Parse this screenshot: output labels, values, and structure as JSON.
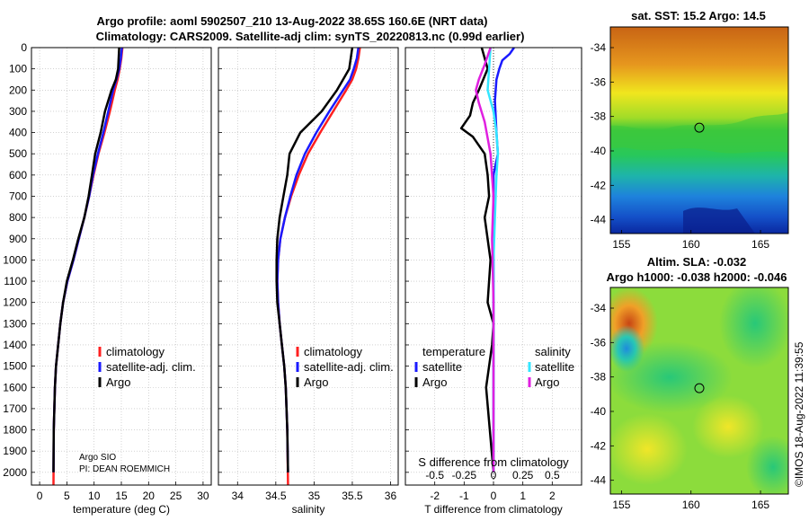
{
  "titles": {
    "line1": "Argo profile: aoml 5902507_210 13-Aug-2022 38.65S 160.6E (NRT data)",
    "line2": "Climatology: CARS2009. Satellite-adj clim: synTS_20220813.nc (0.99d earlier)",
    "sst_title": "sat. SST: 15.2 Argo: 14.5",
    "sla_title1": "Altim. SLA: -0.032",
    "sla_title2": "Argo h1000: -0.038 h2000: -0.046",
    "timestamp": "©IMOS 18-Aug-2022 11:39:55",
    "credit1": "Argo SIO",
    "credit2": "PI: DEAN ROEMMICH"
  },
  "legends": {
    "climatology": "climatology",
    "satellite_adj": "satellite-adj. clim.",
    "argo": "Argo",
    "temperature": "temperature",
    "salinity": "salinity",
    "satellite": "satellite",
    "s_diff_label": "S difference from climatology"
  },
  "colors": {
    "climatology": "#ff2020",
    "satellite_adj": "#1a1aff",
    "argo": "#000000",
    "temp_diff": "#1a1aff",
    "sal_sat": "#33e6ff",
    "sal_argo": "#e020e0",
    "grid": "#b8b8b8"
  },
  "chart_data": [
    {
      "id": "temperature",
      "type": "line",
      "xlabel": "temperature (deg C)",
      "xlim": [
        -1.5,
        31.5
      ],
      "xticks": [
        0,
        5,
        10,
        15,
        20,
        25,
        30
      ],
      "xtick_labels": [
        "0",
        "5",
        "10",
        "15",
        "20",
        "25",
        "30"
      ],
      "ylim": [
        0,
        2060
      ],
      "yticks": [
        0,
        100,
        200,
        300,
        400,
        500,
        600,
        700,
        800,
        900,
        1000,
        1100,
        1200,
        1300,
        1400,
        1500,
        1600,
        1700,
        1800,
        1900,
        2000
      ],
      "ytick_labels": [
        "0",
        "100",
        "200",
        "300",
        "400",
        "500",
        "600",
        "700",
        "800",
        "900",
        "1000",
        "1100",
        "1200",
        "1300",
        "1400",
        "1500",
        "1600",
        "1700",
        "1800",
        "1900",
        "2000"
      ],
      "series": [
        {
          "name": "climatology",
          "color": "#ff2020",
          "width": 2.5,
          "x": [
            15.2,
            15.0,
            14.7,
            14.3,
            13.8,
            12.9,
            11.9,
            10.8,
            9.9,
            9.1,
            8.2,
            7.2,
            6.2,
            5.1,
            4.3,
            3.8,
            3.4,
            3.0,
            2.8,
            2.6,
            2.55
          ],
          "y": [
            0,
            50,
            100,
            150,
            200,
            300,
            400,
            500,
            600,
            700,
            800,
            900,
            1000,
            1100,
            1200,
            1300,
            1400,
            1500,
            1600,
            1800,
            2060
          ]
        },
        {
          "name": "satellite-adj. clim.",
          "color": "#1a1aff",
          "width": 2.5,
          "x": [
            15.1,
            14.9,
            14.6,
            14.1,
            13.5,
            12.6,
            11.7,
            10.7,
            9.8,
            9.1,
            8.2,
            7.2,
            6.2,
            5.1,
            4.3,
            3.8,
            3.4,
            3.0,
            2.8,
            2.6,
            2.55
          ],
          "y": [
            0,
            50,
            100,
            150,
            200,
            300,
            400,
            500,
            600,
            700,
            800,
            900,
            1000,
            1100,
            1200,
            1300,
            1400,
            1500,
            1600,
            1800,
            2000
          ]
        },
        {
          "name": "Argo",
          "color": "#000000",
          "width": 2.5,
          "x": [
            14.6,
            14.5,
            14.4,
            14.0,
            13.2,
            12.0,
            11.2,
            10.2,
            9.6,
            9.0,
            8.2,
            7.1,
            6.1,
            5.0,
            4.3,
            3.8,
            3.4,
            3.0,
            2.8,
            2.6,
            2.55
          ],
          "y": [
            0,
            50,
            100,
            150,
            200,
            300,
            400,
            500,
            600,
            700,
            800,
            900,
            1000,
            1100,
            1200,
            1300,
            1400,
            1500,
            1600,
            1800,
            2000
          ]
        }
      ],
      "legend_location": "lower-right"
    },
    {
      "id": "salinity",
      "type": "line",
      "xlabel": "salinity",
      "xlim": [
        33.75,
        36.1
      ],
      "xticks": [
        34,
        34.5,
        35,
        35.5,
        36
      ],
      "xtick_labels": [
        "34",
        "34.5",
        "35",
        "35.5",
        "36"
      ],
      "ylim": [
        0,
        2060
      ],
      "yticks": [
        0,
        100,
        200,
        300,
        400,
        500,
        600,
        700,
        800,
        900,
        1000,
        1100,
        1200,
        1300,
        1400,
        1500,
        1600,
        1700,
        1800,
        1900,
        2000
      ],
      "series": [
        {
          "name": "climatology",
          "color": "#ff2020",
          "width": 2.5,
          "x": [
            35.6,
            35.58,
            35.55,
            35.5,
            35.42,
            35.25,
            35.08,
            34.92,
            34.8,
            34.7,
            34.62,
            34.56,
            34.53,
            34.52,
            34.53,
            34.55,
            34.58,
            34.61,
            34.63,
            34.65,
            34.66
          ],
          "y": [
            0,
            50,
            100,
            150,
            200,
            300,
            400,
            500,
            600,
            700,
            800,
            900,
            1000,
            1100,
            1200,
            1300,
            1400,
            1500,
            1600,
            1800,
            2060
          ]
        },
        {
          "name": "satellite-adj. clim.",
          "color": "#1a1aff",
          "width": 2.5,
          "x": [
            35.58,
            35.56,
            35.52,
            35.47,
            35.38,
            35.2,
            35.03,
            34.88,
            34.77,
            34.69,
            34.62,
            34.56,
            34.53,
            34.52,
            34.53,
            34.55,
            34.58,
            34.61,
            34.63,
            34.65,
            34.66
          ],
          "y": [
            0,
            50,
            100,
            150,
            200,
            300,
            400,
            500,
            600,
            700,
            800,
            900,
            1000,
            1100,
            1200,
            1300,
            1400,
            1500,
            1600,
            1800,
            2000
          ]
        },
        {
          "name": "Argo",
          "color": "#000000",
          "width": 2.5,
          "x": [
            35.5,
            35.48,
            35.46,
            35.38,
            35.3,
            35.1,
            34.82,
            34.68,
            34.65,
            34.6,
            34.55,
            34.52,
            34.51,
            34.51,
            34.52,
            34.55,
            34.58,
            34.61,
            34.63,
            34.65,
            34.66
          ],
          "y": [
            0,
            50,
            100,
            150,
            200,
            300,
            400,
            500,
            600,
            700,
            800,
            900,
            1000,
            1100,
            1200,
            1300,
            1400,
            1500,
            1600,
            1800,
            2000
          ]
        }
      ],
      "legend_location": "lower-right"
    },
    {
      "id": "difference",
      "type": "line",
      "xlabel": "T difference from climatology",
      "xlim": [
        -3.0,
        3.0
      ],
      "xticks": [
        -2,
        -1,
        0,
        1,
        2
      ],
      "xtick_labels": [
        "-2",
        "-1",
        "0",
        "1",
        "2"
      ],
      "s_ticks": [
        "-0.5",
        "-0.25",
        "0",
        "0.25",
        "0.5"
      ],
      "s_tick_values": [
        -2,
        -1,
        0,
        1,
        2
      ],
      "ylim": [
        0,
        2060
      ],
      "yticks": [
        0,
        100,
        200,
        300,
        400,
        500,
        600,
        700,
        800,
        900,
        1000,
        1100,
        1200,
        1300,
        1400,
        1500,
        1600,
        1700,
        1800,
        1900,
        2000
      ],
      "series": [
        {
          "name": "temperature satellite",
          "color": "#1a1aff",
          "width": 2.5,
          "x": [
            0.7,
            0.55,
            0.3,
            0.2,
            0.1,
            0.05,
            0.1,
            0.15,
            0.0,
            0.0,
            0.0,
            0.0,
            0.0,
            0.0,
            0.0,
            0.0
          ],
          "y": [
            0,
            30,
            60,
            100,
            150,
            250,
            400,
            500,
            600,
            800,
            1000,
            1200,
            1400,
            1600,
            1800,
            2000
          ]
        },
        {
          "name": "temperature Argo",
          "color": "#000000",
          "width": 2.5,
          "x": [
            -0.4,
            -0.2,
            -0.5,
            -0.7,
            -0.8,
            -1.1,
            -0.7,
            -0.3,
            -0.2,
            -0.15,
            -0.3,
            -0.1,
            -0.2,
            0.0,
            -0.05,
            -0.25,
            0.0
          ],
          "y": [
            0,
            100,
            200,
            260,
            320,
            380,
            420,
            500,
            600,
            700,
            800,
            1000,
            1200,
            1300,
            1400,
            1600,
            2000
          ]
        },
        {
          "name": "salinity satellite",
          "color": "#33e6ff",
          "width": 2.5,
          "x": [
            -0.1,
            -0.15,
            -0.2,
            0.0,
            0.1,
            0.15,
            0.1,
            0.05,
            0.0,
            0.0,
            0.0,
            0.0,
            0.0
          ],
          "y": [
            0,
            100,
            200,
            300,
            400,
            500,
            600,
            800,
            1000,
            1200,
            1400,
            1800,
            2000
          ]
        },
        {
          "name": "salinity Argo",
          "color": "#e020e0",
          "width": 2.5,
          "x": [
            -0.1,
            -0.3,
            -0.5,
            -0.6,
            -0.5,
            -0.3,
            -0.1,
            0.0,
            -0.05,
            0.0,
            0.0,
            0.0
          ],
          "y": [
            0,
            80,
            150,
            200,
            260,
            350,
            500,
            700,
            900,
            1200,
            1600,
            2000
          ]
        }
      ],
      "zero_line": true,
      "legend_location": "lower-center"
    },
    {
      "id": "sst_map",
      "type": "heatmap",
      "x_ticks": [
        155,
        160,
        165
      ],
      "x_tick_labels": [
        "155",
        "160",
        "165"
      ],
      "y_ticks": [
        -34,
        -36,
        -38,
        -40,
        -42,
        -44
      ],
      "y_tick_labels": [
        "-34",
        "-36",
        "-38",
        "-40",
        "-42",
        "-44"
      ],
      "xlim": [
        154.2,
        167.0
      ],
      "ylim": [
        -44.8,
        -32.8
      ],
      "marker": {
        "lon": 160.6,
        "lat": -38.65
      }
    },
    {
      "id": "sla_map",
      "type": "heatmap",
      "x_ticks": [
        155,
        160,
        165
      ],
      "x_tick_labels": [
        "155",
        "160",
        "165"
      ],
      "y_ticks": [
        -34,
        -36,
        -38,
        -40,
        -42,
        -44
      ],
      "y_tick_labels": [
        "-34",
        "-36",
        "-38",
        "-40",
        "-42",
        "-44"
      ],
      "xlim": [
        154.2,
        167.0
      ],
      "ylim": [
        -44.8,
        -32.8
      ],
      "marker": {
        "lon": 160.6,
        "lat": -38.65
      }
    }
  ]
}
